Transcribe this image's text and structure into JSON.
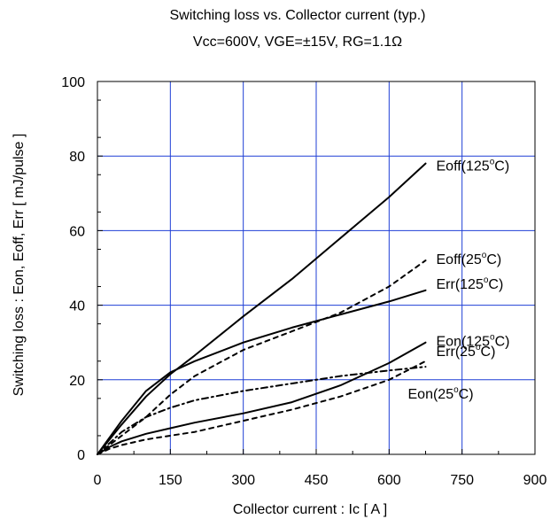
{
  "chart_data": {
    "type": "line",
    "title": "Switching loss vs. Collector current (typ.)",
    "subtitle": "Vcc=600V, VGE=±15V, RG=1.1Ω",
    "xlabel": "Collector current : Ic [ A ]",
    "ylabel": "Switching loss : Eon, Eoff, Err [ mJ/pulse ]",
    "xlim": [
      0,
      900
    ],
    "ylim": [
      0,
      100
    ],
    "x_ticks": [
      "0",
      "150",
      "300",
      "450",
      "600",
      "750",
      "900"
    ],
    "y_ticks": [
      "0",
      "20",
      "40",
      "60",
      "80",
      "100"
    ],
    "grid": true,
    "grid_color": "#1f3fd6",
    "series": [
      {
        "name": "Eoff(125°C)",
        "label": "Eoff(125",
        "style": "solid",
        "x": [
          0,
          50,
          100,
          150,
          200,
          300,
          400,
          500,
          600,
          675
        ],
        "y": [
          0,
          8,
          15.5,
          21.5,
          26.5,
          37,
          47,
          58,
          69,
          78
        ]
      },
      {
        "name": "Err(125°C)",
        "label": "Err(125",
        "style": "solid",
        "x": [
          0,
          50,
          100,
          150,
          200,
          300,
          400,
          500,
          600,
          675
        ],
        "y": [
          0,
          9,
          17,
          22,
          25,
          30,
          34,
          37.5,
          41,
          44
        ]
      },
      {
        "name": "Eon(125°C)",
        "label": "Eon(125",
        "style": "solid",
        "x": [
          0,
          25,
          50,
          100,
          150,
          200,
          300,
          400,
          500,
          600,
          675
        ],
        "y": [
          0,
          2,
          3.5,
          5.5,
          7,
          8.5,
          11,
          14,
          18.5,
          24.5,
          30
        ]
      },
      {
        "name": "Eoff(25°C)",
        "label": "Eoff(25",
        "style": "dash",
        "x": [
          0,
          50,
          100,
          150,
          200,
          300,
          400,
          500,
          600,
          675
        ],
        "y": [
          0,
          5,
          10,
          16,
          21,
          28,
          33,
          38,
          45,
          52
        ]
      },
      {
        "name": "Err(25°C)",
        "label": "Err(25",
        "style": "dashdot",
        "x": [
          0,
          50,
          100,
          150,
          200,
          300,
          400,
          500,
          600,
          675
        ],
        "y": [
          0,
          6,
          10,
          12.5,
          14.5,
          17,
          19,
          21,
          22.5,
          23.5
        ]
      },
      {
        "name": "Eon(25°C)",
        "label": "Eon(25",
        "style": "dash",
        "x": [
          0,
          25,
          50,
          100,
          150,
          200,
          300,
          400,
          500,
          600,
          675
        ],
        "y": [
          0,
          1.5,
          2.5,
          4,
          5,
          6,
          9,
          12,
          15.5,
          20,
          25
        ]
      }
    ],
    "annotation_suffix": "C)",
    "degree_symbol": "o"
  }
}
